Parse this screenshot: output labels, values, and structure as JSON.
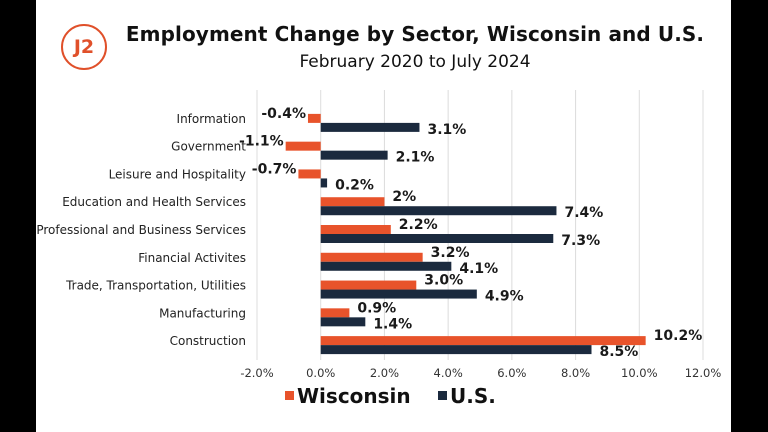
{
  "badge": "J2",
  "chart_data": {
    "type": "bar",
    "orientation": "horizontal",
    "title": "Employment Change by Sector, Wisconsin and U.S.",
    "subtitle": "February 2020 to July 2024",
    "categories": [
      "Information",
      "Government",
      "Leisure and Hospitality",
      "Education and Health Services",
      "Professional and Business Services",
      "Financial Activites",
      "Trade, Transportation, Utilities",
      "Manufacturing",
      "Construction"
    ],
    "series": [
      {
        "name": "Wisconsin",
        "color": "#e8532b",
        "values": [
          -0.4,
          -1.1,
          -0.7,
          2.0,
          2.2,
          3.2,
          3.0,
          0.9,
          10.2
        ],
        "labels": [
          "-0.4%",
          "-1.1%",
          "-0.7%",
          "2%",
          "2.2%",
          "3.2%",
          "3.0%",
          "0.9%",
          "10.2%"
        ]
      },
      {
        "name": "U.S.",
        "color": "#1b2a3e",
        "values": [
          3.1,
          2.1,
          0.2,
          7.4,
          7.3,
          4.1,
          4.9,
          1.4,
          8.5
        ],
        "labels": [
          "3.1%",
          "2.1%",
          "0.2%",
          "7.4%",
          "7.3%",
          "4.1%",
          "4.9%",
          "1.4%",
          "8.5%"
        ]
      }
    ],
    "xlim": [
      -2.0,
      12.0
    ],
    "xticks": [
      -2.0,
      0.0,
      2.0,
      4.0,
      6.0,
      8.0,
      10.0,
      12.0
    ],
    "xtick_labels": [
      "-2.0%",
      "0.0%",
      "2.0%",
      "4.0%",
      "6.0%",
      "8.0%",
      "10.0%",
      "12.0%"
    ],
    "xlabel": "",
    "ylabel": "",
    "grid": "vertical",
    "legend": "bottom"
  }
}
